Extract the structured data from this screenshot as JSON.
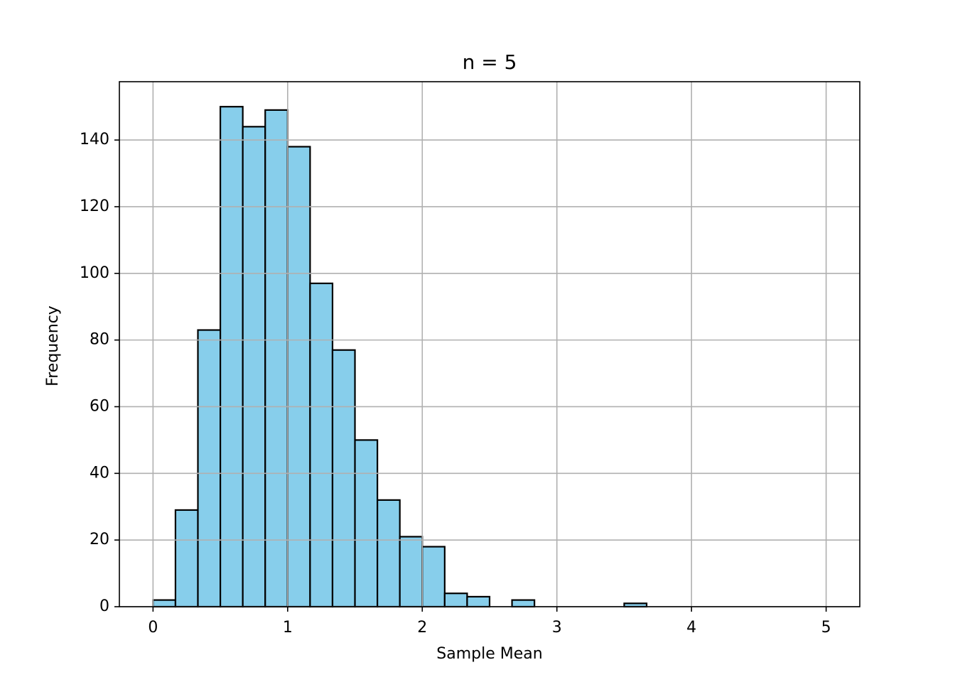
{
  "chart_data": {
    "type": "histogram",
    "title": "n = 5",
    "x_label": "Sample Mean",
    "y_label": "Frequency",
    "bins": [
      0,
      0.16667,
      0.33333,
      0.5,
      0.66667,
      0.83333,
      1,
      1.16667,
      1.33333,
      1.5,
      1.66667,
      1.83333,
      2,
      2.16667,
      2.33333,
      2.5,
      2.66667,
      2.83333,
      3,
      3.16667,
      3.33333,
      3.5,
      3.66667,
      3.83333,
      4,
      4.16667,
      4.33333,
      4.5,
      4.66667,
      4.83333,
      5
    ],
    "values": [
      2,
      29,
      83,
      150,
      144,
      149,
      138,
      97,
      77,
      50,
      32,
      21,
      18,
      4,
      3,
      0,
      2,
      0,
      0,
      0,
      0,
      1,
      0,
      0,
      0,
      0,
      0,
      0,
      0,
      0
    ],
    "color": "#87ceeb",
    "edge_color": "#000000",
    "xlim": [
      -0.25,
      5.25
    ],
    "xticks": [
      0,
      1,
      2,
      3,
      4,
      5
    ],
    "ylim": [
      0,
      157.5
    ],
    "yticks": [
      0,
      20,
      40,
      60,
      80,
      100,
      120,
      140
    ],
    "grid": true
  }
}
